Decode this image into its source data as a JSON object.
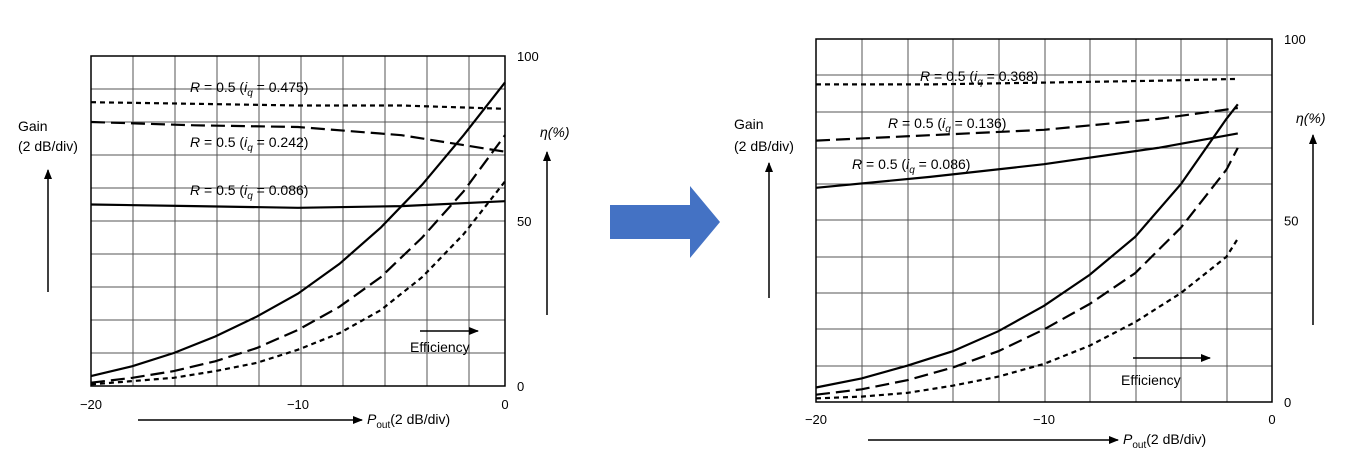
{
  "arrow_color": "#4472C4",
  "chart_data": [
    {
      "type": "line",
      "xlabel_parts": {
        "symbol": "P",
        "sub": "out",
        "unit": "(2 dB/div)"
      },
      "left_label_lines": [
        "Gain",
        "(2 dB/div)"
      ],
      "right_label": "η(%)",
      "xlim": [
        -20,
        0
      ],
      "x_ticks": [
        "−20",
        "−10",
        "0"
      ],
      "x_tick_values": [
        -20,
        -10,
        0
      ],
      "ylim_eff": [
        0,
        100
      ],
      "y_ticks": [
        "0",
        "50",
        "100"
      ],
      "y_tick_values": [
        0,
        50,
        100
      ],
      "gain_range_div": [
        0,
        10
      ],
      "grid": true,
      "annotation": "Efficiency",
      "gain_series": [
        {
          "name": "R = 0.5 (iq = 0.475)",
          "r_text": "R",
          "eq_text": " = 0.5 (",
          "i_text": "i",
          "q_text": "q",
          "iq_value": " = 0.475)",
          "style": "dotted",
          "x": [
            -20,
            -15,
            -10,
            -5,
            0
          ],
          "gain_div": [
            8.6,
            8.55,
            8.5,
            8.5,
            8.4
          ]
        },
        {
          "name": "R = 0.5 (iq = 0.242)",
          "r_text": "R",
          "eq_text": " = 0.5 (",
          "i_text": "i",
          "q_text": "q",
          "iq_value": " = 0.242)",
          "style": "dashed",
          "x": [
            -20,
            -15,
            -10,
            -5,
            -2,
            0
          ],
          "gain_div": [
            8.0,
            7.9,
            7.85,
            7.6,
            7.3,
            7.1
          ]
        },
        {
          "name": "R = 0.5 (iq = 0.086)",
          "r_text": "R",
          "eq_text": " = 0.5 (",
          "i_text": "i",
          "q_text": "q",
          "iq_value": " = 0.086)",
          "style": "solid",
          "x": [
            -20,
            -15,
            -10,
            -5,
            0
          ],
          "gain_div": [
            5.5,
            5.45,
            5.4,
            5.45,
            5.6
          ]
        }
      ],
      "efficiency_series": [
        {
          "style": "solid",
          "x": [
            -20,
            -18,
            -16,
            -14,
            -12,
            -10,
            -8,
            -6,
            -4,
            -2,
            0
          ],
          "y": [
            3,
            6,
            10,
            15,
            21,
            28,
            37,
            48,
            61,
            76,
            92
          ]
        },
        {
          "style": "dashed",
          "x": [
            -20,
            -18,
            -16,
            -14,
            -12,
            -10,
            -8,
            -6,
            -4,
            -2,
            0
          ],
          "y": [
            1,
            2.5,
            4.5,
            7.5,
            11.5,
            17,
            24,
            33,
            45,
            59,
            76
          ]
        },
        {
          "style": "dotted",
          "x": [
            -20,
            -18,
            -16,
            -14,
            -12,
            -10,
            -8,
            -6,
            -4,
            -2,
            0
          ],
          "y": [
            0.5,
            1.5,
            2.5,
            4.5,
            7,
            11,
            16,
            23,
            33,
            46,
            62
          ]
        }
      ]
    },
    {
      "type": "line",
      "xlabel_parts": {
        "symbol": "P",
        "sub": "out",
        "unit": "(2 dB/div)"
      },
      "left_label_lines": [
        "Gain",
        "(2 dB/div)"
      ],
      "right_label": "η(%)",
      "xlim": [
        -20,
        0
      ],
      "x_ticks": [
        "−20",
        "−10",
        "0"
      ],
      "x_tick_values": [
        -20,
        -10,
        0
      ],
      "ylim_eff": [
        0,
        100
      ],
      "y_ticks": [
        "0",
        "50",
        "100"
      ],
      "y_tick_values": [
        0,
        50,
        100
      ],
      "gain_range_div": [
        0,
        10
      ],
      "grid": true,
      "annotation": "Efficiency",
      "gain_series": [
        {
          "name": "R = 0.5 (iq = 0.368)",
          "r_text": "R",
          "eq_text": " = 0.5 (",
          "i_text": "i",
          "q_text": "q",
          "iq_value": " = 0.368)",
          "style": "dotted",
          "x": [
            -20,
            -15,
            -10,
            -5,
            -1.5
          ],
          "gain_div": [
            8.75,
            8.75,
            8.8,
            8.85,
            8.9
          ]
        },
        {
          "name": "R = 0.5 (iq = 0.136)",
          "r_text": "R",
          "eq_text": " = 0.5 (",
          "i_text": "i",
          "q_text": "q",
          "iq_value": " = 0.136)",
          "style": "dashed",
          "x": [
            -20,
            -15,
            -10,
            -5,
            -1.5
          ],
          "gain_div": [
            7.2,
            7.35,
            7.5,
            7.8,
            8.1
          ]
        },
        {
          "name": "R = 0.5 (iq = 0.086)",
          "r_text": "R",
          "eq_text": " = 0.5 (",
          "i_text": "i",
          "q_text": "q",
          "iq_value": " = 0.086)",
          "style": "solid",
          "x": [
            -20,
            -15,
            -10,
            -5,
            -1.5
          ],
          "gain_div": [
            5.9,
            6.2,
            6.55,
            7.0,
            7.4
          ]
        }
      ],
      "efficiency_series": [
        {
          "style": "solid",
          "x": [
            -20,
            -18,
            -16,
            -14,
            -12,
            -10,
            -8,
            -6,
            -4,
            -2,
            -1.5
          ],
          "y": [
            4,
            6.5,
            10,
            14,
            19.5,
            26.5,
            35,
            45.5,
            60,
            78,
            82
          ]
        },
        {
          "style": "dashed",
          "x": [
            -20,
            -18,
            -16,
            -14,
            -12,
            -10,
            -8,
            -6,
            -4,
            -2,
            -1.5
          ],
          "y": [
            2,
            3.5,
            6,
            9.5,
            14,
            20,
            27,
            35.5,
            48,
            64,
            70
          ]
        },
        {
          "style": "dotted",
          "x": [
            -20,
            -18,
            -16,
            -14,
            -12,
            -10,
            -8,
            -6,
            -4,
            -2,
            -1.5
          ],
          "y": [
            1,
            1.5,
            2.5,
            4.5,
            7,
            10.5,
            15.5,
            22,
            30,
            40,
            45
          ]
        }
      ]
    }
  ]
}
